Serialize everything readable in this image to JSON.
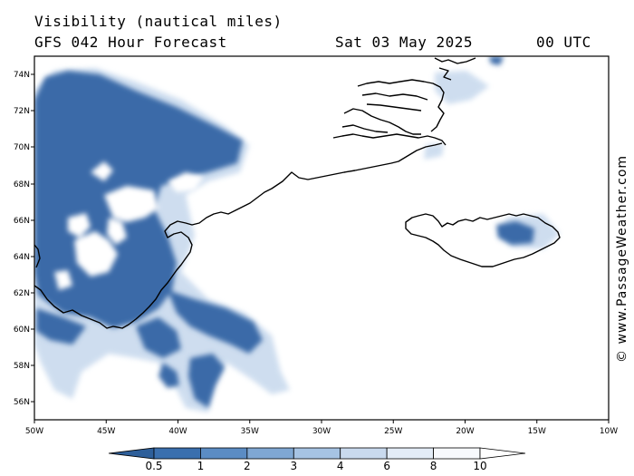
{
  "header": {
    "title": "Visibility (nautical miles)",
    "model": "GFS 042 Hour Forecast",
    "date": "Sat 03 May 2025",
    "time": "00 UTC"
  },
  "credit": "© www.PassageWeather.com",
  "map": {
    "region": "Greenland - Iceland",
    "lon_range": [
      -50,
      -10
    ],
    "lat_range": [
      55,
      75
    ],
    "lon_ticks": [
      "50W",
      "45W",
      "40W",
      "35W",
      "30W",
      "25W",
      "20W",
      "15W",
      "10W"
    ],
    "lat_ticks": [
      "74N",
      "72N",
      "70N",
      "68N",
      "66N",
      "64N",
      "62N",
      "60N",
      "58N",
      "56N"
    ]
  },
  "legend": {
    "unit": "nautical miles",
    "levels": [
      "0.5",
      "1",
      "2",
      "3",
      "4",
      "6",
      "8",
      "10"
    ],
    "colors": [
      "#2e5f9a",
      "#3a6fae",
      "#5b8cc4",
      "#7fa7d3",
      "#a6c3e3",
      "#c9daee",
      "#e3ecf7",
      "#f7f9fd",
      "#ffffff"
    ]
  }
}
